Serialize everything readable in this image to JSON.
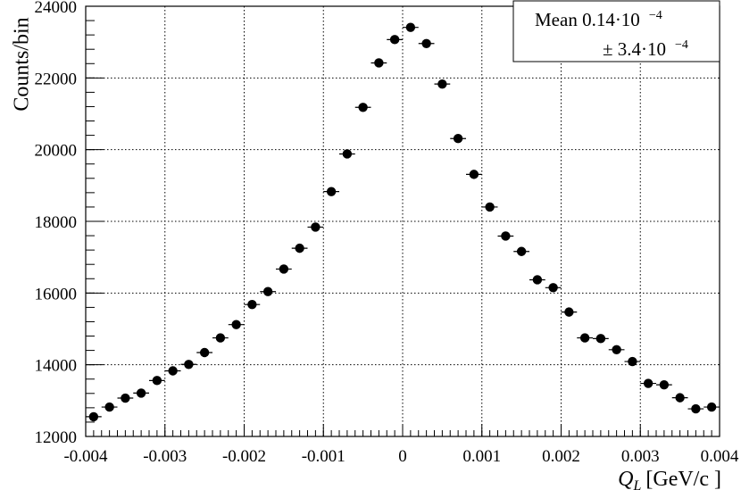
{
  "chart_data": {
    "type": "scatter",
    "xlabel_main": "Q",
    "xlabel_sub": "L",
    "xlabel_unit": "[GeV/c ]",
    "ylabel": "Counts/bin",
    "xlim": [
      -0.004,
      0.004
    ],
    "ylim": [
      12000,
      24000
    ],
    "grid": true,
    "x_ticks": [
      -0.004,
      -0.003,
      -0.002,
      -0.001,
      0,
      0.001,
      0.002,
      0.003,
      0.004
    ],
    "x_tick_labels": [
      "-0.004",
      "-0.003",
      "-0.002",
      "-0.001",
      "0",
      "0.001",
      "0.002",
      "0.003",
      "0.004"
    ],
    "y_ticks": [
      12000,
      14000,
      16000,
      18000,
      20000,
      22000,
      24000
    ],
    "y_tick_labels": [
      "12000",
      "14000",
      "16000",
      "18000",
      "20000",
      "22000",
      "24000"
    ],
    "bin_half_width": 0.0001,
    "x": [
      -0.0039,
      -0.0037,
      -0.0035,
      -0.0033,
      -0.0031,
      -0.0029,
      -0.0027,
      -0.0025,
      -0.0023,
      -0.0021,
      -0.0019,
      -0.0017,
      -0.0015,
      -0.0013,
      -0.0011,
      -0.0009,
      -0.0007,
      -0.0005,
      -0.0003,
      -0.0001,
      0.0001,
      0.0003,
      0.0005,
      0.0007,
      0.0009,
      0.0011,
      0.0013,
      0.0015,
      0.0017,
      0.0019,
      0.0021,
      0.0023,
      0.0025,
      0.0027,
      0.0029,
      0.0031,
      0.0033,
      0.0035,
      0.0037,
      0.0039
    ],
    "y": [
      12550,
      12820,
      13070,
      13210,
      13560,
      13830,
      14010,
      14340,
      14750,
      15120,
      15680,
      16040,
      16670,
      17250,
      17840,
      18830,
      19880,
      21180,
      22420,
      23070,
      23410,
      22960,
      21830,
      20310,
      19310,
      18400,
      17590,
      17160,
      16370,
      16150,
      15470,
      14750,
      14730,
      14420,
      14090,
      13480,
      13440,
      13080,
      12770,
      12820
    ],
    "legend": {
      "placement": "top-right",
      "mean_prefix": "Mean 0.14·10",
      "mean_exp": "−4",
      "err_prefix": "± 3.4·10",
      "err_exp": "−4"
    }
  }
}
